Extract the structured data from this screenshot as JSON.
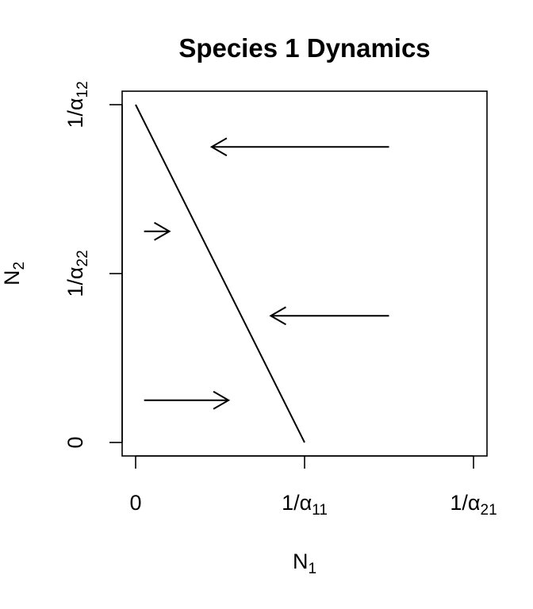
{
  "chart_data": {
    "type": "line",
    "title": "Species 1 Dynamics",
    "xlabel": {
      "base": "N",
      "sub": "1"
    },
    "ylabel": {
      "base": "N",
      "sub": "2"
    },
    "xlim": [
      0,
      2
    ],
    "ylim": [
      0,
      2
    ],
    "x_ticks": [
      {
        "value": 0,
        "prefix": "0",
        "sub": ""
      },
      {
        "value": 1,
        "prefix": "1/α",
        "sub": "11"
      },
      {
        "value": 2,
        "prefix": "1/α",
        "sub": "21"
      }
    ],
    "y_ticks": [
      {
        "value": 0,
        "prefix": "0",
        "sub": ""
      },
      {
        "value": 1,
        "prefix": "1/α",
        "sub": "22"
      },
      {
        "value": 2,
        "prefix": "1/α",
        "sub": "12"
      }
    ],
    "isocline": {
      "x": [
        0,
        1
      ],
      "y": [
        2,
        0
      ],
      "color": "#000000"
    },
    "arrows": [
      {
        "x0": 1.5,
        "y0": 1.75,
        "x1": 0.45,
        "y1": 1.75
      },
      {
        "x0": 0.05,
        "y0": 1.25,
        "x1": 0.2,
        "y1": 1.25
      },
      {
        "x0": 1.5,
        "y0": 0.75,
        "x1": 0.8,
        "y1": 0.75
      },
      {
        "x0": 0.05,
        "y0": 0.25,
        "x1": 0.55,
        "y1": 0.25
      }
    ],
    "grid": false,
    "legend": "none"
  }
}
